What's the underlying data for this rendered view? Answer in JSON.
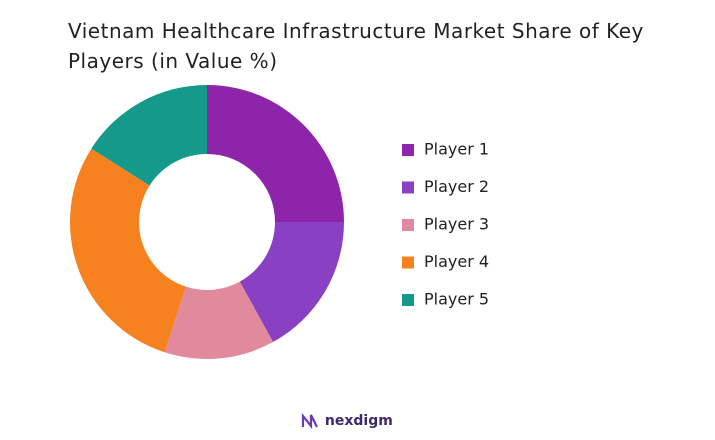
{
  "chart_data": {
    "type": "pie",
    "title": "Vietnam Healthcare Infrastructure Market Share of Key Players (in Value %)",
    "categories": [
      "Player 1",
      "Player 2",
      "Player 3",
      "Player 4",
      "Player 5"
    ],
    "values": [
      25,
      17,
      13,
      29,
      16
    ],
    "colors": [
      "#8e24aa",
      "#8a40c2",
      "#e18a9e",
      "#f5821f",
      "#14998a"
    ],
    "legend": "right"
  },
  "footer": {
    "brand": "nexdigm"
  }
}
